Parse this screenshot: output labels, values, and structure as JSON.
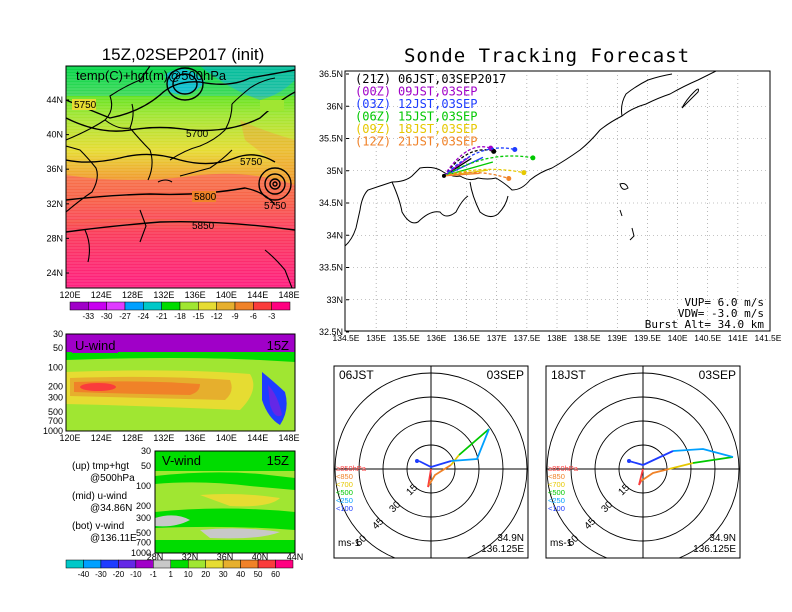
{
  "left_panel": {
    "title": "15Z,02SEP2017 (init)",
    "map_label": "temp(C)+hgt(m)@500hPa",
    "lat_labels": [
      "44N",
      "40N",
      "36N",
      "32N",
      "28N",
      "24N"
    ],
    "lon_labels": [
      "120E",
      "124E",
      "128E",
      "132E",
      "136E",
      "140E",
      "144E",
      "148E"
    ],
    "contour_labels": [
      "5750",
      "5700",
      "5750",
      "5800",
      "5750",
      "5850"
    ],
    "temp_colorbar": {
      "labels": [
        "-33",
        "-30",
        "-27",
        "-24",
        "-21",
        "-18",
        "-15",
        "-12",
        "-9",
        "-6",
        "-3"
      ],
      "colors": [
        "#a000c8",
        "#c800f0",
        "#e03cff",
        "#00a0ff",
        "#00c8c8",
        "#00dc00",
        "#a0e632",
        "#e6dc32",
        "#e6af2d",
        "#f08228",
        "#fa3c3c",
        "#ff0080"
      ]
    }
  },
  "uwind_panel": {
    "label": "U-wind",
    "time": "15Z",
    "pressure_labels": [
      "30",
      "50",
      "100",
      "200",
      "300",
      "500",
      "700",
      "1000"
    ],
    "lon_labels": [
      "120E",
      "124E",
      "128E",
      "132E",
      "136E",
      "140E",
      "144E",
      "148E"
    ]
  },
  "vwind_panel": {
    "label": "V-wind",
    "time": "15Z",
    "pressure_labels": [
      "30",
      "50",
      "100",
      "200",
      "300",
      "500",
      "700",
      "1000"
    ],
    "lat_labels": [
      "28N",
      "32N",
      "36N",
      "40N",
      "44N"
    ]
  },
  "legend_text": {
    "up": [
      "(up) tmp+hgt",
      "@500hPa"
    ],
    "mid": [
      "(mid) u-wind",
      "@34.86N"
    ],
    "bot": [
      "(bot) v-wind",
      "@136.11E"
    ]
  },
  "wind_colorbar": {
    "labels": [
      "-40",
      "-30",
      "-20",
      "-10",
      "-1",
      "1",
      "10",
      "20",
      "30",
      "40",
      "50",
      "60"
    ],
    "colors": [
      "#00c8c8",
      "#00a0ff",
      "#1e3cff",
      "#6428e6",
      "#a000c8",
      "#c8c8c8",
      "#00dc00",
      "#a0e632",
      "#e6dc32",
      "#e6af2d",
      "#f08228",
      "#fa3c3c",
      "#ff0080"
    ]
  },
  "tracking": {
    "title": "Sonde Tracking Forecast",
    "lat_labels": [
      "36.5N",
      "36N",
      "35.5N",
      "35N",
      "34.5N",
      "34N",
      "33.5N",
      "33N",
      "32.5N"
    ],
    "lon_labels": [
      "134.5E",
      "135E",
      "135.5E",
      "136E",
      "136.5E",
      "137E",
      "137.5E",
      "138E",
      "138.5E",
      "139E",
      "139.5E",
      "140E",
      "140.5E",
      "141E",
      "141.5E"
    ],
    "launches": [
      {
        "utc": "(21Z)",
        "jst": "06JST,03SEP2017",
        "color": "#000000"
      },
      {
        "utc": "(00Z)",
        "jst": "09JST,03SEP",
        "color": "#a000c8"
      },
      {
        "utc": "(03Z)",
        "jst": "12JST,03SEP",
        "color": "#1e3cff"
      },
      {
        "utc": "(06Z)",
        "jst": "15JST,03SEP",
        "color": "#00c800"
      },
      {
        "utc": "(09Z)",
        "jst": "18JST,03SEP",
        "color": "#e6c800"
      },
      {
        "utc": "(12Z)",
        "jst": "21JST,03SEP",
        "color": "#f08228"
      }
    ],
    "params": [
      "VUP= 6.0 m/s",
      "VDW= -3.0 m/s",
      "Burst Alt= 34.0 km"
    ]
  },
  "hodographs": [
    {
      "time": "06JST",
      "date": "03SEP",
      "lat": "34.9N",
      "lon": "136.125E",
      "unit": "ms-1"
    },
    {
      "time": "18JST",
      "date": "03SEP",
      "lat": "34.9N",
      "lon": "136.125E",
      "unit": "ms-1"
    }
  ],
  "hodo_levels": {
    "labels": [
      "≥850hPa",
      "<850",
      "<700",
      "<500",
      "<250",
      "<100"
    ],
    "colors": [
      "#fa3c3c",
      "#f08228",
      "#e6c800",
      "#00c800",
      "#00a0ff",
      "#1e3cff"
    ]
  },
  "ring_labels": [
    "15",
    "30",
    "45",
    "60"
  ]
}
